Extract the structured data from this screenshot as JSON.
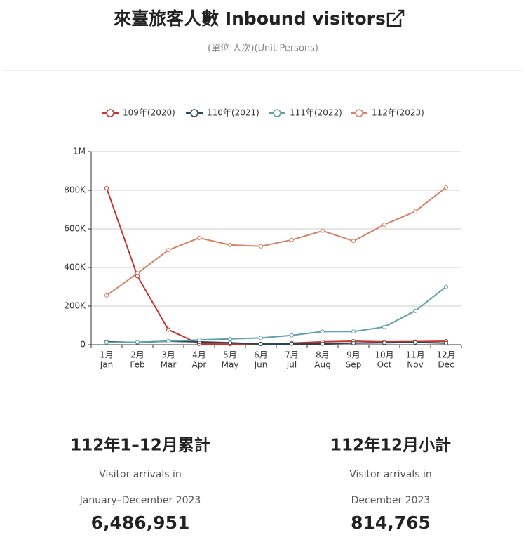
{
  "header": {
    "title": "來臺旅客人數 Inbound visitors",
    "subtitle": "(單位:人次)(Unit:Persons)"
  },
  "chart_data": {
    "type": "line",
    "categories": [
      [
        "1月",
        "Jan"
      ],
      [
        "2月",
        "Feb"
      ],
      [
        "3月",
        "Mar"
      ],
      [
        "4月",
        "Apr"
      ],
      [
        "5月",
        "May"
      ],
      [
        "6月",
        "Jun"
      ],
      [
        "7月",
        "Jul"
      ],
      [
        "8月",
        "Aug"
      ],
      [
        "9月",
        "Sep"
      ],
      [
        "10月",
        "Oct"
      ],
      [
        "11月",
        "Nov"
      ],
      [
        "12月",
        "Dec"
      ]
    ],
    "ylim": [
      0,
      1000000
    ],
    "yticks": [
      {
        "value": 0,
        "label": "0"
      },
      {
        "value": 200000,
        "label": "200K"
      },
      {
        "value": 400000,
        "label": "400K"
      },
      {
        "value": 600000,
        "label": "600K"
      },
      {
        "value": 800000,
        "label": "800K"
      },
      {
        "value": 1000000,
        "label": "1M"
      }
    ],
    "grid": true,
    "legend": "top",
    "series": [
      {
        "name": "109年(2020)",
        "color": "#c23531",
        "values": [
          811000,
          355000,
          78000,
          4000,
          3000,
          4000,
          8000,
          15000,
          18000,
          15000,
          16000,
          18000
        ]
      },
      {
        "name": "110年(2021)",
        "color": "#2f4554",
        "values": [
          15000,
          12000,
          18000,
          15000,
          10000,
          3000,
          5000,
          5000,
          8000,
          10000,
          12000,
          8000
        ]
      },
      {
        "name": "111年(2022)",
        "color": "#61a0a8",
        "values": [
          12000,
          13000,
          18000,
          25000,
          30000,
          35000,
          48000,
          68000,
          68000,
          92000,
          175000,
          300000
        ]
      },
      {
        "name": "112年(2023)",
        "color": "#d48265",
        "values": [
          255000,
          370000,
          490000,
          553000,
          517000,
          510000,
          543000,
          590000,
          537000,
          622000,
          690000,
          814765
        ]
      }
    ]
  },
  "stats": [
    {
      "title": "112年1–12月累計",
      "line1": "Visitor arrivals in",
      "line2": "January–December 2023",
      "value": "6,486,951"
    },
    {
      "title": "112年12月小計",
      "line1": "Visitor arrivals in",
      "line2": "December 2023",
      "value": "814,765"
    }
  ]
}
